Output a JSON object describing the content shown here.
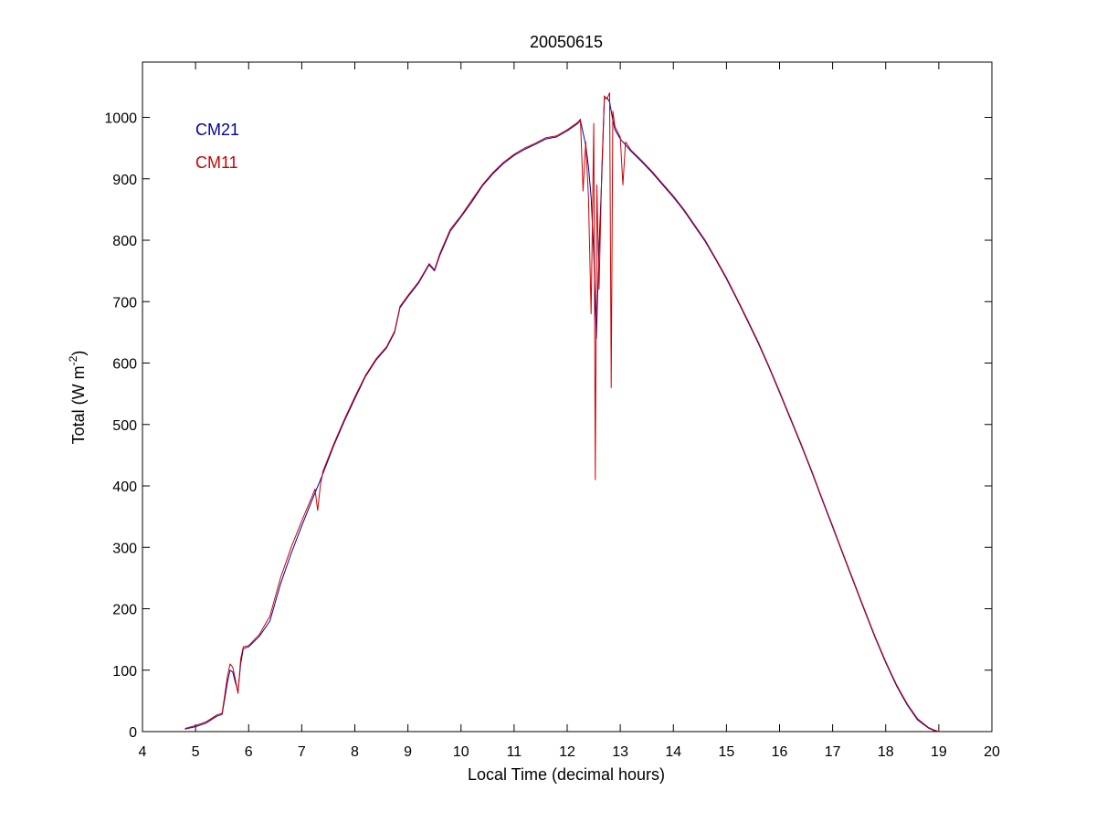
{
  "chart_data": {
    "type": "line",
    "title": "20050615",
    "xlabel": "Local Time (decimal hours)",
    "ylabel": {
      "base": "Total (W m",
      "superscript": "-2",
      "close": ")"
    },
    "xlim": [
      4,
      20
    ],
    "ylim": [
      0,
      1090
    ],
    "xticks": [
      4,
      5,
      6,
      7,
      8,
      9,
      10,
      11,
      12,
      13,
      14,
      15,
      16,
      17,
      18,
      19,
      20
    ],
    "yticks": [
      0,
      100,
      200,
      300,
      400,
      500,
      600,
      700,
      800,
      900,
      1000
    ],
    "grid": false,
    "legend_placement": "top-left",
    "series": [
      {
        "name": "CM21",
        "color": "#0000aa",
        "points": [
          [
            4.8,
            4
          ],
          [
            5.0,
            8
          ],
          [
            5.2,
            14
          ],
          [
            5.4,
            25
          ],
          [
            5.5,
            28
          ],
          [
            5.6,
            80
          ],
          [
            5.65,
            100
          ],
          [
            5.7,
            97
          ],
          [
            5.75,
            80
          ],
          [
            5.8,
            65
          ],
          [
            5.85,
            110
          ],
          [
            5.9,
            135
          ],
          [
            6.0,
            138
          ],
          [
            6.2,
            155
          ],
          [
            6.4,
            180
          ],
          [
            6.6,
            240
          ],
          [
            6.8,
            290
          ],
          [
            7.0,
            335
          ],
          [
            7.2,
            378
          ],
          [
            7.4,
            420
          ],
          [
            7.6,
            465
          ],
          [
            7.8,
            505
          ],
          [
            8.0,
            542
          ],
          [
            8.2,
            578
          ],
          [
            8.4,
            605
          ],
          [
            8.6,
            625
          ],
          [
            8.75,
            650
          ],
          [
            8.85,
            690
          ],
          [
            9.0,
            708
          ],
          [
            9.2,
            730
          ],
          [
            9.4,
            760
          ],
          [
            9.5,
            750
          ],
          [
            9.6,
            775
          ],
          [
            9.8,
            815
          ],
          [
            10.0,
            838
          ],
          [
            10.2,
            862
          ],
          [
            10.4,
            888
          ],
          [
            10.6,
            908
          ],
          [
            10.8,
            925
          ],
          [
            11.0,
            938
          ],
          [
            11.2,
            948
          ],
          [
            11.4,
            956
          ],
          [
            11.6,
            965
          ],
          [
            11.8,
            968
          ],
          [
            12.0,
            978
          ],
          [
            12.2,
            990
          ],
          [
            12.25,
            995
          ],
          [
            12.3,
            975
          ],
          [
            12.35,
            955
          ],
          [
            12.4,
            920
          ],
          [
            12.45,
            870
          ],
          [
            12.5,
            780
          ],
          [
            12.55,
            640
          ],
          [
            12.6,
            790
          ],
          [
            12.65,
            900
          ],
          [
            12.7,
            1030
          ],
          [
            12.75,
            1032
          ],
          [
            12.8,
            1025
          ],
          [
            12.85,
            1000
          ],
          [
            12.9,
            980
          ],
          [
            13.0,
            965
          ],
          [
            13.2,
            945
          ],
          [
            13.4,
            928
          ],
          [
            13.6,
            910
          ],
          [
            13.8,
            890
          ],
          [
            14.0,
            870
          ],
          [
            14.2,
            848
          ],
          [
            14.4,
            823
          ],
          [
            14.6,
            798
          ],
          [
            14.8,
            768
          ],
          [
            15.0,
            737
          ],
          [
            15.2,
            703
          ],
          [
            15.4,
            668
          ],
          [
            15.6,
            632
          ],
          [
            15.8,
            593
          ],
          [
            16.0,
            552
          ],
          [
            16.2,
            510
          ],
          [
            16.4,
            468
          ],
          [
            16.6,
            424
          ],
          [
            16.8,
            378
          ],
          [
            17.0,
            333
          ],
          [
            17.2,
            287
          ],
          [
            17.4,
            242
          ],
          [
            17.6,
            197
          ],
          [
            17.8,
            153
          ],
          [
            18.0,
            112
          ],
          [
            18.2,
            75
          ],
          [
            18.4,
            44
          ],
          [
            18.6,
            19
          ],
          [
            18.8,
            6
          ],
          [
            18.9,
            2
          ],
          [
            19.0,
            0
          ]
        ]
      },
      {
        "name": "CM11",
        "color": "#cc0000",
        "points": [
          [
            4.8,
            5
          ],
          [
            5.0,
            10
          ],
          [
            5.2,
            16
          ],
          [
            5.4,
            27
          ],
          [
            5.5,
            30
          ],
          [
            5.6,
            90
          ],
          [
            5.65,
            110
          ],
          [
            5.7,
            105
          ],
          [
            5.75,
            85
          ],
          [
            5.8,
            62
          ],
          [
            5.85,
            118
          ],
          [
            5.9,
            138
          ],
          [
            6.0,
            140
          ],
          [
            6.2,
            158
          ],
          [
            6.4,
            188
          ],
          [
            6.6,
            250
          ],
          [
            6.8,
            300
          ],
          [
            7.0,
            343
          ],
          [
            7.2,
            384
          ],
          [
            7.25,
            395
          ],
          [
            7.3,
            360
          ],
          [
            7.35,
            400
          ],
          [
            7.4,
            424
          ],
          [
            7.6,
            468
          ],
          [
            7.8,
            508
          ],
          [
            8.0,
            545
          ],
          [
            8.2,
            580
          ],
          [
            8.4,
            607
          ],
          [
            8.6,
            627
          ],
          [
            8.75,
            652
          ],
          [
            8.85,
            692
          ],
          [
            9.0,
            710
          ],
          [
            9.2,
            732
          ],
          [
            9.4,
            762
          ],
          [
            9.5,
            752
          ],
          [
            9.6,
            778
          ],
          [
            9.8,
            818
          ],
          [
            10.0,
            840
          ],
          [
            10.2,
            865
          ],
          [
            10.4,
            890
          ],
          [
            10.6,
            910
          ],
          [
            10.8,
            927
          ],
          [
            11.0,
            940
          ],
          [
            11.2,
            950
          ],
          [
            11.4,
            958
          ],
          [
            11.6,
            967
          ],
          [
            11.8,
            970
          ],
          [
            12.0,
            980
          ],
          [
            12.2,
            992
          ],
          [
            12.25,
            997
          ],
          [
            12.3,
            880
          ],
          [
            12.35,
            960
          ],
          [
            12.4,
            870
          ],
          [
            12.45,
            680
          ],
          [
            12.5,
            990
          ],
          [
            12.53,
            410
          ],
          [
            12.56,
            890
          ],
          [
            12.6,
            720
          ],
          [
            12.65,
            910
          ],
          [
            12.7,
            1035
          ],
          [
            12.75,
            1030
          ],
          [
            12.8,
            1040
          ],
          [
            12.83,
            560
          ],
          [
            12.86,
            1010
          ],
          [
            12.9,
            985
          ],
          [
            13.0,
            968
          ],
          [
            13.05,
            890
          ],
          [
            13.1,
            960
          ],
          [
            13.2,
            947
          ],
          [
            13.4,
            930
          ],
          [
            13.6,
            912
          ],
          [
            13.8,
            892
          ],
          [
            14.0,
            872
          ],
          [
            14.2,
            850
          ],
          [
            14.4,
            825
          ],
          [
            14.6,
            800
          ],
          [
            14.8,
            770
          ],
          [
            15.0,
            739
          ],
          [
            15.2,
            705
          ],
          [
            15.4,
            670
          ],
          [
            15.6,
            634
          ],
          [
            15.8,
            595
          ],
          [
            16.0,
            554
          ],
          [
            16.2,
            512
          ],
          [
            16.4,
            470
          ],
          [
            16.6,
            426
          ],
          [
            16.8,
            380
          ],
          [
            17.0,
            335
          ],
          [
            17.2,
            289
          ],
          [
            17.4,
            244
          ],
          [
            17.6,
            199
          ],
          [
            17.8,
            155
          ],
          [
            18.0,
            114
          ],
          [
            18.2,
            77
          ],
          [
            18.4,
            46
          ],
          [
            18.6,
            21
          ],
          [
            18.8,
            7
          ],
          [
            18.9,
            3
          ],
          [
            19.0,
            0
          ]
        ]
      }
    ]
  }
}
